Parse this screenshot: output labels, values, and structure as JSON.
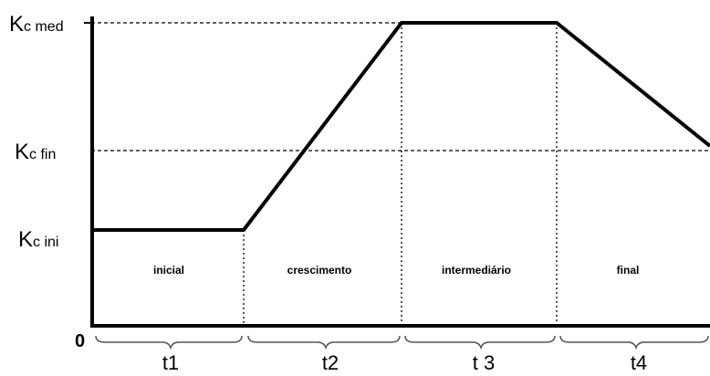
{
  "y_labels": [
    {
      "main": "K",
      "sub": "c med"
    },
    {
      "main": "K",
      "sub": "c fin"
    },
    {
      "main": "K",
      "sub": "c ini"
    }
  ],
  "origin": "0",
  "stages": [
    "inicial",
    "crescimento",
    "intermediário",
    "final"
  ],
  "periods": [
    "t1",
    "t2",
    "t 3",
    "t4"
  ]
}
